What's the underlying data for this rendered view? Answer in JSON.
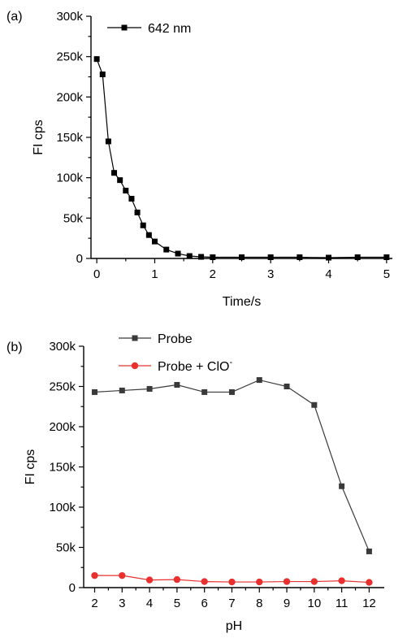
{
  "chart_data": [
    {
      "type": "line",
      "panel_label": "(a)",
      "title": "",
      "xlabel": "Time/s",
      "ylabel": "FI cps",
      "xlim": [
        -0.1,
        5.1
      ],
      "ylim": [
        0,
        300000
      ],
      "x_ticks": [
        0,
        1,
        2,
        3,
        4,
        5
      ],
      "x_tick_labels": [
        "0",
        "1",
        "2",
        "3",
        "4",
        "5"
      ],
      "y_ticks": [
        0,
        50000,
        100000,
        150000,
        200000,
        250000,
        300000
      ],
      "y_tick_labels": [
        "0",
        "50k",
        "100k",
        "150k",
        "200k",
        "250k",
        "300k"
      ],
      "grid": false,
      "legend_position": "top-left",
      "series": [
        {
          "name": "642 nm",
          "color": "#000000",
          "marker": "square",
          "x": [
            0,
            0.1,
            0.2,
            0.3,
            0.4,
            0.5,
            0.6,
            0.7,
            0.8,
            0.9,
            1.0,
            1.2,
            1.4,
            1.6,
            1.8,
            2.0,
            2.5,
            3.0,
            3.5,
            4.0,
            4.5,
            5.0
          ],
          "y": [
            247000,
            228000,
            145000,
            106000,
            97000,
            84000,
            74000,
            57000,
            41000,
            29000,
            21000,
            11000,
            6000,
            3000,
            2000,
            1500,
            1500,
            1500,
            1500,
            1000,
            1500,
            1500
          ]
        }
      ]
    },
    {
      "type": "line",
      "panel_label": "(b)",
      "title": "",
      "xlabel": "pH",
      "ylabel": "FI cps",
      "xlim": [
        1.6,
        12.55
      ],
      "ylim": [
        0,
        300000
      ],
      "x_ticks": [
        2,
        3,
        4,
        5,
        6,
        7,
        8,
        9,
        10,
        11,
        12
      ],
      "x_tick_labels": [
        "2",
        "3",
        "4",
        "5",
        "6",
        "7",
        "8",
        "9",
        "10",
        "11",
        "12"
      ],
      "y_ticks": [
        0,
        50000,
        100000,
        150000,
        200000,
        250000,
        300000
      ],
      "y_tick_labels": [
        "0",
        "50k",
        "100k",
        "150k",
        "200k",
        "250k",
        "300k"
      ],
      "grid": false,
      "legend_position": "top-left",
      "series": [
        {
          "name": "Probe",
          "color": "#3a3a3a",
          "marker": "square",
          "x": [
            2,
            3,
            4,
            5,
            6,
            7,
            8,
            9,
            10,
            11,
            12
          ],
          "y": [
            243000,
            245000,
            247000,
            252000,
            243000,
            243000,
            258000,
            250000,
            227000,
            126000,
            45000
          ]
        },
        {
          "name": "Probe + ClO",
          "name_superscript": "-",
          "color": "#e8312f",
          "marker": "circle",
          "x": [
            2,
            3,
            4,
            5,
            6,
            7,
            8,
            9,
            10,
            11,
            12
          ],
          "y": [
            15000,
            15000,
            9500,
            10000,
            7500,
            7000,
            7000,
            7500,
            7500,
            8500,
            6500
          ]
        }
      ]
    }
  ]
}
